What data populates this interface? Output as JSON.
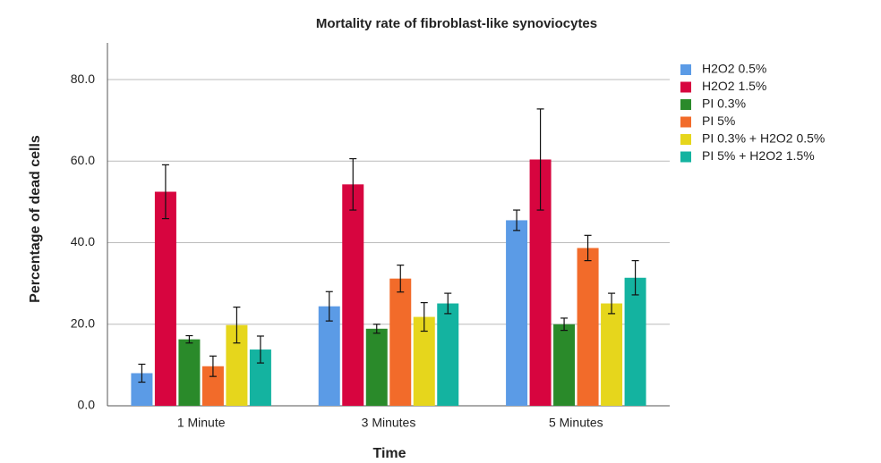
{
  "chart_data": {
    "type": "bar",
    "title": "Mortality rate of fibroblast-like synoviocytes",
    "x_label": "Time",
    "y_label": "Percentage of dead cells",
    "categories": [
      "1 Minute",
      "3 Minutes",
      "5 Minutes"
    ],
    "ylim": [
      0,
      89
    ],
    "yticks": [
      {
        "value": 0,
        "label": "0.0"
      },
      {
        "value": 20,
        "label": "20.0"
      },
      {
        "value": 40,
        "label": "40.0"
      },
      {
        "value": 60,
        "label": "60.0"
      },
      {
        "value": 80,
        "label": "80.0"
      }
    ],
    "grid": true,
    "legend": "right",
    "series": [
      {
        "name": "H2O2 0.5%",
        "color": "#5b9be6",
        "values": [
          8,
          24.4,
          45.5
        ],
        "errors": [
          2.2,
          3.6,
          2.5
        ]
      },
      {
        "name": "H2O2 1.5%",
        "color": "#d7053f",
        "values": [
          52.5,
          54.3,
          60.4
        ],
        "errors": [
          6.6,
          6.3,
          12.4
        ]
      },
      {
        "name": "PI 0.3%",
        "color": "#2a8a2a",
        "values": [
          16.3,
          18.9,
          20
        ],
        "errors": [
          0.9,
          1.1,
          1.5
        ]
      },
      {
        "name": "PI 5%",
        "color": "#f26b2a",
        "values": [
          9.7,
          31.2,
          38.7
        ],
        "errors": [
          2.5,
          3.3,
          3.1
        ]
      },
      {
        "name": "PI 0.3% + H2O2 0.5%",
        "color": "#e6d61c",
        "values": [
          19.8,
          21.8,
          25.1
        ],
        "errors": [
          4.4,
          3.5,
          2.5
        ]
      },
      {
        "name": "PI 5% + H2O2 1.5%",
        "color": "#14b3a0",
        "values": [
          13.8,
          25.1,
          31.4
        ],
        "errors": [
          3.3,
          2.5,
          4.2
        ]
      }
    ]
  }
}
